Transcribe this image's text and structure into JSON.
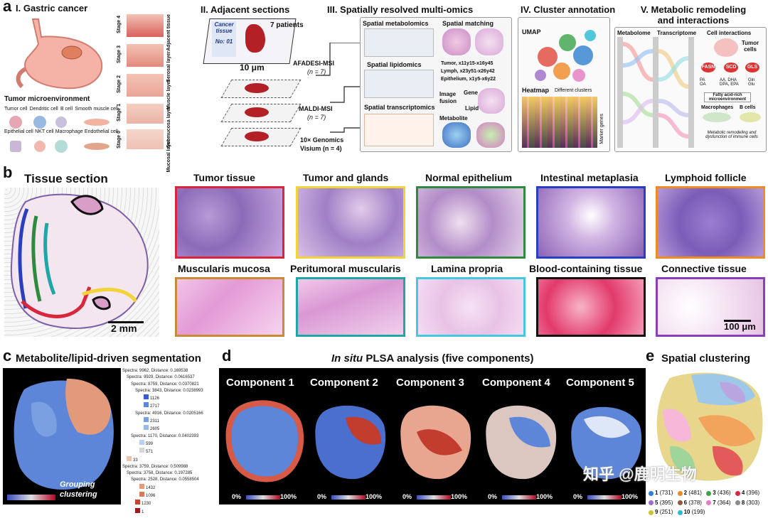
{
  "panel_a": {
    "letter": "a",
    "s1_title": "I. Gastric cancer",
    "s2_title": "II. Adjacent sections",
    "s3_title": "III. Spatially resolved multi-omics",
    "s4_title": "IV. Cluster annotation",
    "s5_title_l1": "V. Metabolic remodeling",
    "s5_title_l2": "and interactions",
    "stages": [
      "Stage 4",
      "Stage 3",
      "Stage 2",
      "Stage 1",
      "Stage 0"
    ],
    "layers": [
      "Adjacent tissue",
      "Serosal layer",
      "Muscle layer",
      "Submucosa layer",
      "Mucosal layer"
    ],
    "tme_title": "Tumor microenvironment",
    "cells_row1": [
      "Tumor cell",
      "Dendritic cell",
      "B cell",
      "Smooth muscle cell"
    ],
    "cells_row2": [
      "Epithelial cell",
      "NKT cell",
      "Macrophage",
      "Endothelial cell"
    ],
    "section_card_l1": "Cancer",
    "section_card_l2": "tissue",
    "section_card_no": "No: 01",
    "patients": "7 patients",
    "thickness": "10 μm",
    "method1": "AFADESI-MSI",
    "method1_n": "(n = 7)",
    "method2": "MALDI-MSI",
    "method2_n": "(n = 7)",
    "method3": "10× Genomics",
    "method3b": "Visium (n = 4)",
    "omics_met": "Spatial metabolomics",
    "omics_match": "Spatial matching",
    "omics_lip": "Spatial lipidomics",
    "omics_tx": "Spatial transcriptomics",
    "coord1": "Tumor, x11y15-x16y45",
    "coord2": "Lymph, x23y51-x26y42",
    "coord3": "Epithelium, x1y5-x6y22",
    "fusion1": "Image",
    "fusion2": "fusion",
    "gene": "Gene",
    "lipid": "Lipid",
    "metabolite": "Metabolite",
    "umap": "UMAP",
    "heatmap": "Heatmap",
    "diff_clusters": "Different clusters",
    "marker_genes": "Marker genes",
    "metabolome": "Metabolome",
    "transcriptome": "Transcriptome",
    "cell_interactions": "Cell interactions",
    "tumor_cells": "Tumor cells",
    "enzymes": [
      "FASN",
      "SCD",
      "GLS"
    ],
    "fa_left": "PA\nOA",
    "fa_mid": "AA, DHA\nDPA, EPA",
    "fa_right": "Gln\nGlu",
    "fatty_micro": "Fatty acid-rich microenvironment",
    "macrophages": "Macrophages",
    "bcells": "B cells",
    "remodel_note": "Metabolic remodeling and dysfunction of immune cells"
  },
  "panel_b": {
    "letter": "b",
    "tissue_title": "Tissue section",
    "scale_2mm": "2 mm",
    "scale_100um": "100 μm",
    "tiles_row1": [
      {
        "label": "Tumor tissue",
        "color": "#d7263d"
      },
      {
        "label": "Tumor and glands",
        "color": "#f2d33a"
      },
      {
        "label": "Normal epithelium",
        "color": "#2e8b3e"
      },
      {
        "label": "Intestinal metaplasia",
        "color": "#2a3fbf"
      },
      {
        "label": "Lymphoid follicle",
        "color": "#f08a24"
      }
    ],
    "tiles_row2": [
      {
        "label": "Muscularis mucosa",
        "color": "#c98a3a"
      },
      {
        "label": "Peritumoral muscularis",
        "color": "#1fa6a6"
      },
      {
        "label": "Lamina propria",
        "color": "#43c8e0"
      },
      {
        "label": "Blood-containing tissue",
        "color": "#111111"
      },
      {
        "label": "Connective tissue",
        "color": "#8a3fb5"
      }
    ]
  },
  "panel_c": {
    "letter": "c",
    "title": "Metabolite/lipid-driven segmentation",
    "overlay_l1": "Grouping",
    "overlay_l2": "clustering",
    "tree": [
      "Spectra: 9962, Distance: 0.169538",
      "Spectra: 9929, Distance: 0.0616537",
      "Spectra: 8759, Distance: 0.0370821",
      "Spectra: 3843, Distance: 0.0238993",
      "1126",
      "2717",
      "Spectra: 4916, Distance: 0.0205166",
      "2311",
      "2605",
      "Spectra: 1170, Distance: 0.0402393",
      "599",
      "571",
      "33",
      "Spectra: 3759, Distance: 0.509988",
      "Spectra: 3758, Distance: 0.197285",
      "Spectra: 2528, Distance: 0.0558504",
      "1432",
      "1096",
      "1230",
      "1"
    ]
  },
  "panel_d": {
    "letter": "d",
    "title_italic": "In situ",
    "title_rest": "PLSA analysis (five components)",
    "components": [
      "Component 1",
      "Component 2",
      "Component 3",
      "Component 4",
      "Component 5"
    ],
    "scale_min": "0%",
    "scale_max": "100%"
  },
  "panel_e": {
    "letter": "e",
    "title": "Spatial clustering",
    "watermark": "知乎 @鹿明生物",
    "clusters": [
      {
        "id": "1",
        "n": "(731)",
        "color": "#2f7fd0"
      },
      {
        "id": "2",
        "n": "(481)",
        "color": "#f08a24"
      },
      {
        "id": "3",
        "n": "(436)",
        "color": "#3aa34a"
      },
      {
        "id": "4",
        "n": "(396)",
        "color": "#d7263d"
      },
      {
        "id": "5",
        "n": "(395)",
        "color": "#9b6cc9"
      },
      {
        "id": "6",
        "n": "(378)",
        "color": "#8c5a3c"
      },
      {
        "id": "7",
        "n": "(364)",
        "color": "#e57bc2"
      },
      {
        "id": "8",
        "n": "(303)",
        "color": "#8a8a8a"
      },
      {
        "id": "9",
        "n": "(251)",
        "color": "#c9c530"
      },
      {
        "id": "10",
        "n": "(199)",
        "color": "#27bcd1"
      }
    ]
  }
}
